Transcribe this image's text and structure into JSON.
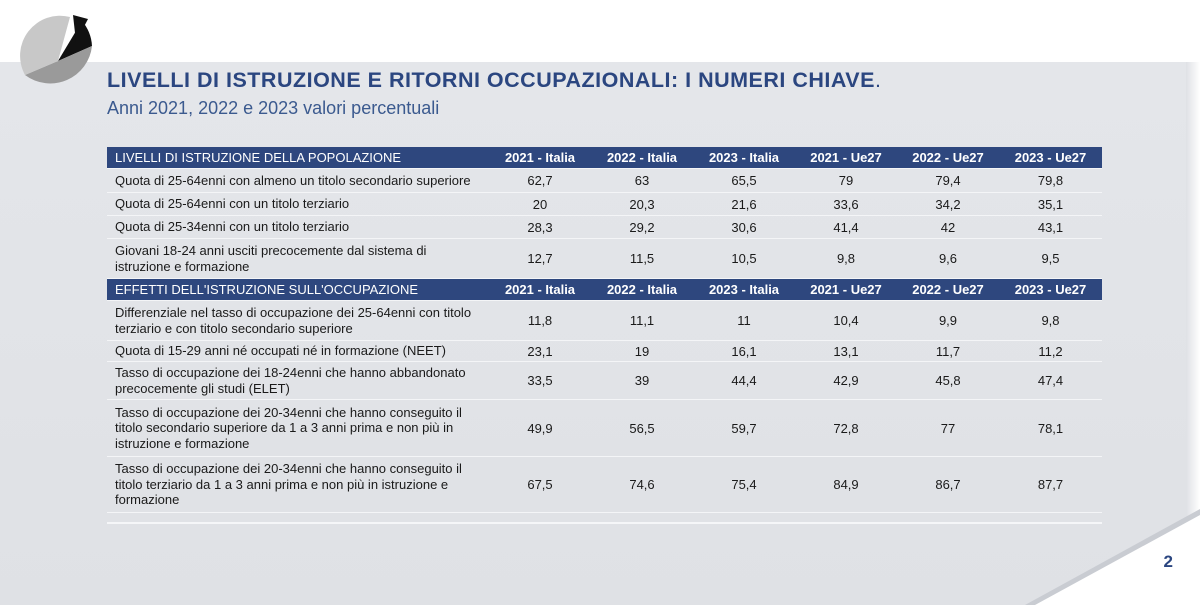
{
  "title": "LIVELLI DI ISTRUZIONE E RITORNI OCCUPAZIONALI: I NUMERI CHIAVE",
  "title_dot": ".",
  "subtitle": "Anni 2021, 2022 e 2023 valori percentuali",
  "columns": [
    "2021 - Italia",
    "2022 - Italia",
    "2023 - Italia",
    "2021 - Ue27",
    "2022 - Ue27",
    "2023 - Ue27"
  ],
  "sections": [
    {
      "header": "LIVELLI DI ISTRUZIONE DELLA POPOLAZIONE",
      "rows": [
        {
          "label": "Quota di 25-64enni con almeno un titolo secondario superiore",
          "values": [
            "62,7",
            "63",
            "65,5",
            "79",
            "79,4",
            "79,8"
          ]
        },
        {
          "label": "Quota di 25-64enni con un titolo terziario",
          "values": [
            "20",
            "20,3",
            "21,6",
            "33,6",
            "34,2",
            "35,1"
          ]
        },
        {
          "label": "Quota di 25-34enni con un titolo terziario",
          "values": [
            "28,3",
            "29,2",
            "30,6",
            "41,4",
            "42",
            "43,1"
          ]
        },
        {
          "label": "Giovani 18-24 anni usciti precocemente dal sistema di istruzione e formazione",
          "values": [
            "12,7",
            "11,5",
            "10,5",
            "9,8",
            "9,6",
            "9,5"
          ]
        }
      ]
    },
    {
      "header": "EFFETTI DELL'ISTRUZIONE SULL'OCCUPAZIONE",
      "rows": [
        {
          "label": "Differenziale nel tasso di occupazione dei 25-64enni con titolo terziario e con titolo secondario superiore",
          "values": [
            "11,8",
            "11,1",
            "11",
            "10,4",
            "9,9",
            "9,8"
          ]
        },
        {
          "label": "Quota di 15-29 anni né occupati né in formazione (NEET)",
          "values": [
            "23,1",
            "19",
            "16,1",
            "13,1",
            "11,7",
            "11,2"
          ]
        },
        {
          "label": "Tasso di occupazione dei 18-24enni che hanno abbandonato precocemente gli studi (ELET)",
          "values": [
            "33,5",
            "39",
            "44,4",
            "42,9",
            "45,8",
            "47,4"
          ]
        },
        {
          "label": "Tasso di occupazione dei 20-34enni che hanno conseguito il titolo secondario superiore da 1 a 3 anni prima e non più in istruzione e formazione",
          "values": [
            "49,9",
            "56,5",
            "59,7",
            "72,8",
            "77",
            "78,1"
          ]
        },
        {
          "label": "Tasso di occupazione dei 20-34enni che hanno conseguito il titolo terziario da 1 a 3 anni prima e non più in istruzione e formazione",
          "values": [
            "67,5",
            "74,6",
            "75,4",
            "84,9",
            "86,7",
            "87,7"
          ]
        }
      ]
    }
  ],
  "page_number": "2",
  "colors": {
    "header_bg": "#2e477e",
    "title": "#2b4680",
    "slide_bg": "#e4e6ea"
  }
}
